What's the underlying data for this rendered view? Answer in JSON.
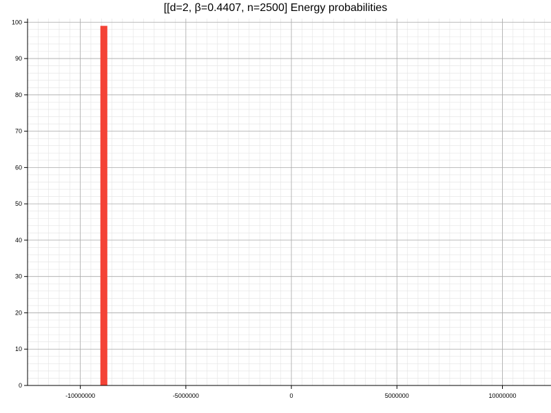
{
  "chart_data": {
    "type": "bar",
    "title": "[[d=2, β=0.4407, n=2500] Energy probabilities",
    "xlabel": "",
    "ylabel": "",
    "xlim": [
      -12500000,
      12300000
    ],
    "ylim": [
      0,
      101
    ],
    "x_ticks": [
      -10000000,
      -5000000,
      0,
      5000000,
      10000000
    ],
    "x_tick_labels": [
      "-10000000",
      "-5000000",
      "0",
      "5000000",
      "10000000"
    ],
    "y_ticks": [
      0,
      10,
      20,
      30,
      40,
      50,
      60,
      70,
      80,
      90,
      100
    ],
    "y_tick_labels": [
      "0",
      "10",
      "20",
      "30",
      "40",
      "50",
      "60",
      "70",
      "80",
      "90",
      "100"
    ],
    "grid": true,
    "minor_grid": true,
    "bars": [
      {
        "x_start": -9050000,
        "x_end": -8720000,
        "value": 99
      }
    ],
    "bar_color": "#f44336"
  }
}
